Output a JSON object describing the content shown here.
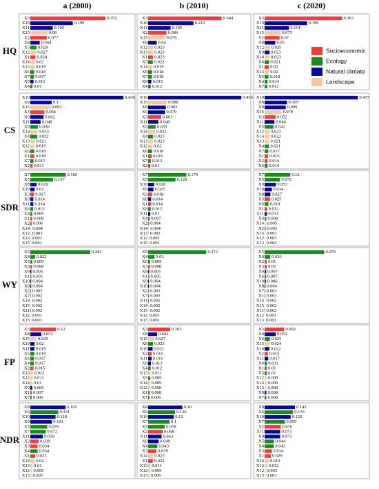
{
  "chart_data": {
    "type": "bar",
    "columns": [
      "a (2000)",
      "b (2010)",
      "c (2020)"
    ],
    "rows": [
      "HQ",
      "CS",
      "SDR",
      "WY",
      "FP",
      "NDR"
    ],
    "series": [
      {
        "name": "Socioeconomic",
        "color": "#f03c3c",
        "members": [
          "X1",
          "X2",
          "X3"
        ]
      },
      {
        "name": "Ecology",
        "color": "#1a8c1a",
        "members": [
          "X4",
          "X5",
          "X6",
          "X7"
        ]
      },
      {
        "name": "Natural climate",
        "color": "#0a0a9a",
        "members": [
          "X8",
          "X9",
          "X10",
          "X11"
        ]
      },
      {
        "name": "Landscape",
        "color": "#f7c89c",
        "members": [
          "X12",
          "X13",
          "X14",
          "X15"
        ]
      }
    ],
    "panels": [
      [
        {
          "categories": [
            "X3",
            "X10",
            "X11",
            "X15",
            "X2",
            "X8",
            "X5",
            "X12",
            "X1",
            "X14",
            "X13",
            "X6",
            "X7",
            "X9",
            "X4"
          ],
          "values": [
            0.352,
            0.199,
            0.105,
            0.08,
            0.077,
            0.044,
            0.029,
            0.027,
            0.024,
            0.02,
            0.019,
            0.018,
            0.017,
            0.015,
            0.01
          ]
        },
        {
          "categories": [
            "X3",
            "X10",
            "X11",
            "X2",
            "X15",
            "X8",
            "X12",
            "X13",
            "X1",
            "X5",
            "X14",
            "X6",
            "X7",
            "X9",
            "X4"
          ],
          "values": [
            0.344,
            0.212,
            0.105,
            0.086,
            0.079,
            0.04,
            0.023,
            0.023,
            0.023,
            0.022,
            0.019,
            0.018,
            0.018,
            0.015,
            0.012
          ]
        },
        {
          "categories": [
            "X3",
            "X10",
            "X11",
            "X15",
            "X2",
            "X8",
            "X12",
            "X9",
            "X14",
            "X6",
            "X1",
            "X13",
            "X5",
            "X4",
            "X7"
          ],
          "values": [
            0.363,
            0.199,
            0.114,
            0.075,
            0.07,
            0.05,
            0.025,
            0.023,
            0.023,
            0.021,
            0.02,
            0.02,
            0.018,
            0.014,
            0.012
          ]
        }
      ],
      [
        {
          "categories": [
            "X10",
            "X8",
            "X15",
            "X3",
            "X9",
            "X11",
            "X5",
            "X14",
            "X4",
            "X13",
            "X12",
            "X6",
            "X1",
            "X7",
            "X2"
          ],
          "values": [
            0.436,
            0.1,
            0.093,
            0.066,
            0.062,
            0.048,
            0.036,
            0.033,
            0.032,
            0.021,
            0.019,
            0.018,
            0.018,
            0.015,
            0.011
          ]
        },
        {
          "categories": [
            "X10",
            "X15",
            "X8",
            "X9",
            "X3",
            "X11",
            "X5",
            "X14",
            "X4",
            "X13",
            "X12",
            "X6",
            "X1",
            "X7",
            "X2"
          ],
          "values": [
            0.436,
            0.088,
            0.083,
            0.079,
            0.061,
            0.048,
            0.035,
            0.032,
            0.023,
            0.023,
            0.02,
            0.018,
            0.016,
            0.012,
            0.01
          ]
        },
        {
          "categories": [
            "X10",
            "X8",
            "X9",
            "X15",
            "X3",
            "X11",
            "X5",
            "X12",
            "X14",
            "X13",
            "X4",
            "X7",
            "X1",
            "X2",
            "X6"
          ],
          "values": [
            0.437,
            0.105,
            0.099,
            0.079,
            0.052,
            0.046,
            0.042,
            0.023,
            0.023,
            0.021,
            0.021,
            0.017,
            0.016,
            0.014,
            0.014
          ]
        }
      ],
      [
        {
          "categories": [
            "X7",
            "X5",
            "X8",
            "X10",
            "X3",
            "X9",
            "X11",
            "X6",
            "X4",
            "X1",
            "X2",
            "X14",
            "X12",
            "X13",
            "X15"
          ],
          "values": [
            0.166,
            0.107,
            0.029,
            0.02,
            0.017,
            0.014,
            0.014,
            0.013,
            0.009,
            0.008,
            0.006,
            0.004,
            0.003,
            0.001,
            0.001
          ]
        },
        {
          "categories": [
            "X7",
            "X5",
            "X10",
            "X9",
            "X3",
            "X8",
            "X1",
            "X6",
            "X11",
            "X4",
            "X2",
            "X14",
            "X13",
            "X12",
            "X15"
          ],
          "values": [
            0.179,
            0.128,
            0.028,
            0.025,
            0.018,
            0.014,
            0.014,
            0.012,
            0.01,
            0.007,
            0.004,
            0.004,
            0.003,
            0.001,
            0.001
          ]
        },
        {
          "categories": [
            "X7",
            "X5",
            "X9",
            "X10",
            "X8",
            "X3",
            "X6",
            "X1",
            "X11",
            "X4",
            "X14",
            "X2",
            "X15",
            "X12",
            "X13"
          ],
          "values": [
            0.12,
            0.072,
            0.053,
            0.034,
            0.027,
            0.025,
            0.018,
            0.012,
            0.011,
            0.008,
            0.005,
            0.005,
            0.003,
            0.003,
            0.002
          ]
        }
      ],
      [
        {
          "categories": [
            "X5",
            "X4",
            "X6",
            "X3",
            "X9",
            "X1",
            "X10",
            "X8",
            "X2",
            "X7",
            "X14",
            "X15",
            "X11",
            "X12",
            "X13"
          ],
          "values": [
            0.281,
            0.022,
            0.009,
            0.008,
            0.005,
            0.005,
            0.004,
            0.004,
            0.003,
            0.002,
            0.002,
            0.002,
            0.002,
            0.001,
            0.001
          ]
        },
        {
          "categories": [
            "X5",
            "X4",
            "X6",
            "X3",
            "X8",
            "X1",
            "X9",
            "X10",
            "X2",
            "X7",
            "X11",
            "X14",
            "X15",
            "X12",
            "X13"
          ],
          "values": [
            0.272,
            0.03,
            0.009,
            0.008,
            0.005,
            0.005,
            0.004,
            0.004,
            0.003,
            0.003,
            0.002,
            0.002,
            0.002,
            0.001,
            0.001
          ]
        },
        {
          "categories": [
            "X5",
            "X4",
            "X2",
            "X3",
            "X9",
            "X6",
            "X10",
            "X8",
            "X7",
            "X1",
            "X14",
            "X15",
            "X11",
            "X12",
            "X13"
          ],
          "values": [
            0.279,
            0.026,
            0.01,
            0.01,
            0.007,
            0.007,
            0.006,
            0.004,
            0.003,
            0.003,
            0.002,
            0.002,
            0.002,
            0.001,
            0.001
          ]
        }
      ],
      [
        {
          "categories": [
            "X3",
            "X8",
            "X15",
            "X10",
            "X11",
            "X5",
            "X6",
            "X4",
            "X2",
            "X13",
            "X12",
            "X14",
            "X9",
            "X1",
            "X7"
          ],
          "values": [
            0.12,
            0.052,
            0.029,
            0.02,
            0.019,
            0.019,
            0.017,
            0.017,
            0.015,
            0.012,
            0.011,
            0.01,
            0.009,
            0.007,
            0.006
          ]
        },
        {
          "categories": [
            "X3",
            "X8",
            "X15",
            "X6",
            "X10",
            "X2",
            "X11",
            "X9",
            "X4",
            "X13",
            "X5",
            "X14",
            "X12",
            "X1",
            "X7"
          ],
          "values": [
            0.103,
            0.042,
            0.027,
            0.023,
            0.021,
            0.016,
            0.016,
            0.013,
            0.012,
            0.011,
            0.009,
            0.009,
            0.008,
            0.008,
            0.006
          ]
        },
        {
          "categories": [
            "X3",
            "X8",
            "X6",
            "X15",
            "X10",
            "X2",
            "X11",
            "X4",
            "X1",
            "X5",
            "X12",
            "X14",
            "X13",
            "X9",
            "X7"
          ],
          "values": [
            0.092,
            0.052,
            0.025,
            0.024,
            0.022,
            0.015,
            0.017,
            0.011,
            0.01,
            0.01,
            0.009,
            0.009,
            0.008,
            0.008,
            0.008
          ]
        }
      ],
      [
        {
          "categories": [
            "X8",
            "X6",
            "X10",
            "X9",
            "X5",
            "X7",
            "X11",
            "X2",
            "X3",
            "X4",
            "X1",
            "X14",
            "X13",
            "X12",
            "X15"
          ],
          "values": [
            0.165,
            0.131,
            0.118,
            0.101,
            0.079,
            0.072,
            0.059,
            0.039,
            0.034,
            0.034,
            0.023,
            0.02,
            0.01,
            0.008,
            0.005
          ]
        },
        {
          "categories": [
            "X8",
            "X6",
            "X10",
            "X7",
            "X5",
            "X2",
            "X11",
            "X9",
            "X4",
            "X3",
            "X14",
            "X1",
            "X13",
            "X12",
            "X15"
          ],
          "values": [
            0.16,
            0.126,
            0.12,
            0.1,
            0.078,
            0.068,
            0.063,
            0.049,
            0.043,
            0.039,
            0.023,
            0.022,
            0.011,
            0.009,
            0.006
          ]
        },
        {
          "categories": [
            "X8",
            "X6",
            "X10",
            "X7",
            "X2",
            "X11",
            "X9",
            "X5",
            "X4",
            "X3",
            "X1",
            "X14",
            "X13",
            "X12",
            "X15"
          ],
          "values": [
            0.142,
            0.133,
            0.122,
            0.095,
            0.076,
            0.073,
            0.073,
            0.044,
            0.043,
            0.034,
            0.029,
            0.019,
            0.012,
            0.005,
            0.003
          ]
        }
      ]
    ]
  }
}
